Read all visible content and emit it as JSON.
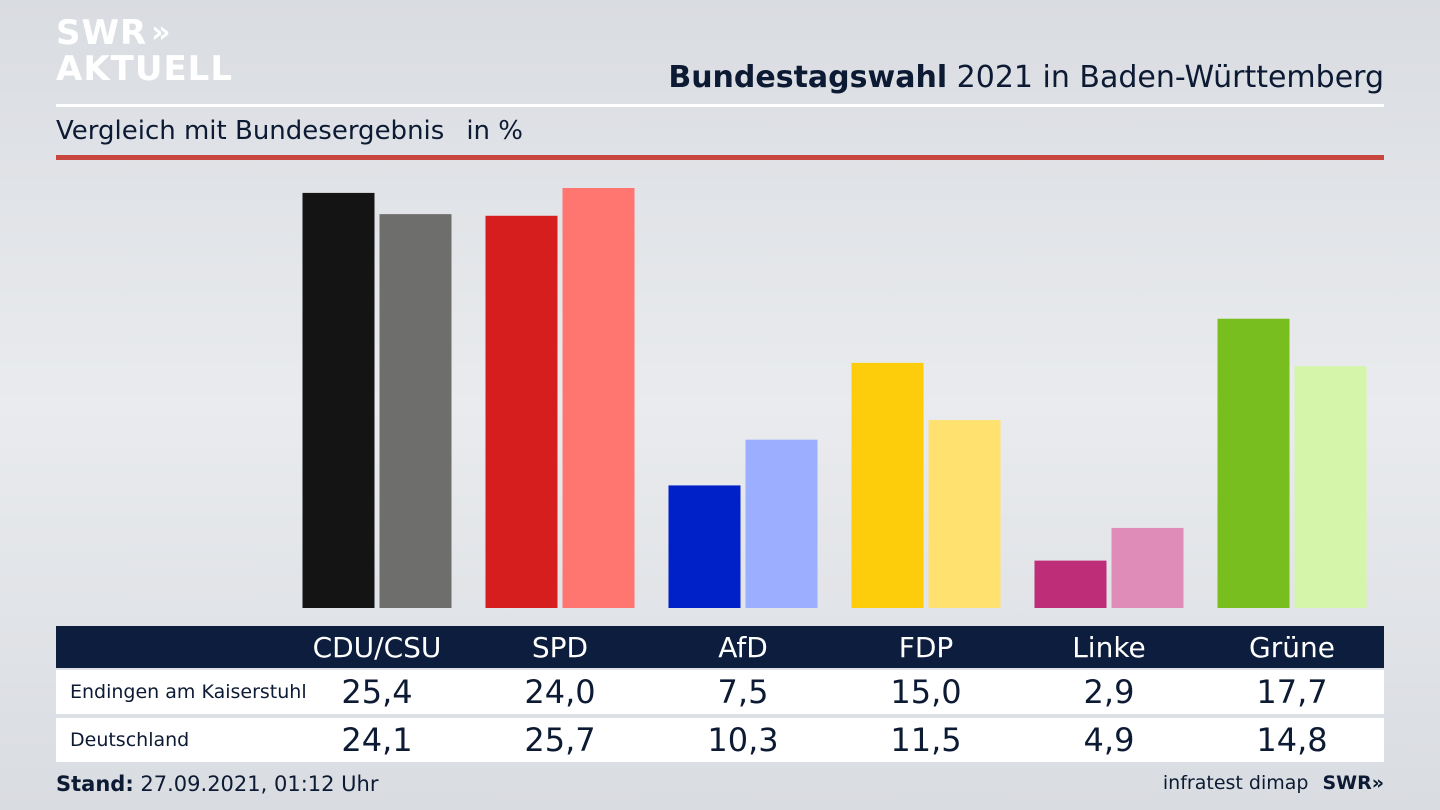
{
  "logo": {
    "line1": "SWR",
    "chevrons": "»",
    "line2": "AKTUELL"
  },
  "header": {
    "title_bold": "Bundestagswahl",
    "title_rest": " 2021 in Baden-Württemberg",
    "subtitle": "Vergleich mit Bundesergebnis",
    "unit": "in %"
  },
  "chart_data": {
    "type": "bar",
    "categories": [
      "CDU/CSU",
      "SPD",
      "AfD",
      "FDP",
      "Linke",
      "Grüne"
    ],
    "series": [
      {
        "name": "Endingen am Kaiserstuhl",
        "values": [
          25.4,
          24.0,
          7.5,
          15.0,
          2.9,
          17.7
        ],
        "colors": [
          "#141414",
          "#d71e1e",
          "#0020c8",
          "#fdcc0a",
          "#be2d78",
          "#78be1e"
        ]
      },
      {
        "name": "Deutschland",
        "values": [
          24.1,
          25.7,
          10.3,
          11.5,
          4.9,
          14.8
        ],
        "colors": [
          "#6e6e6c",
          "#ff7570",
          "#9caeff",
          "#ffe170",
          "#e08cb9",
          "#d4f5aa"
        ]
      }
    ],
    "display_values": [
      [
        "25,4",
        "24,0",
        "7,5",
        "15,0",
        "2,9",
        "17,7"
      ],
      [
        "24,1",
        "25,7",
        "10,3",
        "11,5",
        "4,9",
        "14,8"
      ]
    ],
    "ylim": [
      0,
      25.7
    ],
    "grid": false,
    "legend": "table-below"
  },
  "footer": {
    "stand_label": "Stand:",
    "stand_value": " 27.09.2021, 01:12 Uhr",
    "source": "infratest dimap",
    "brand": "SWR»"
  }
}
